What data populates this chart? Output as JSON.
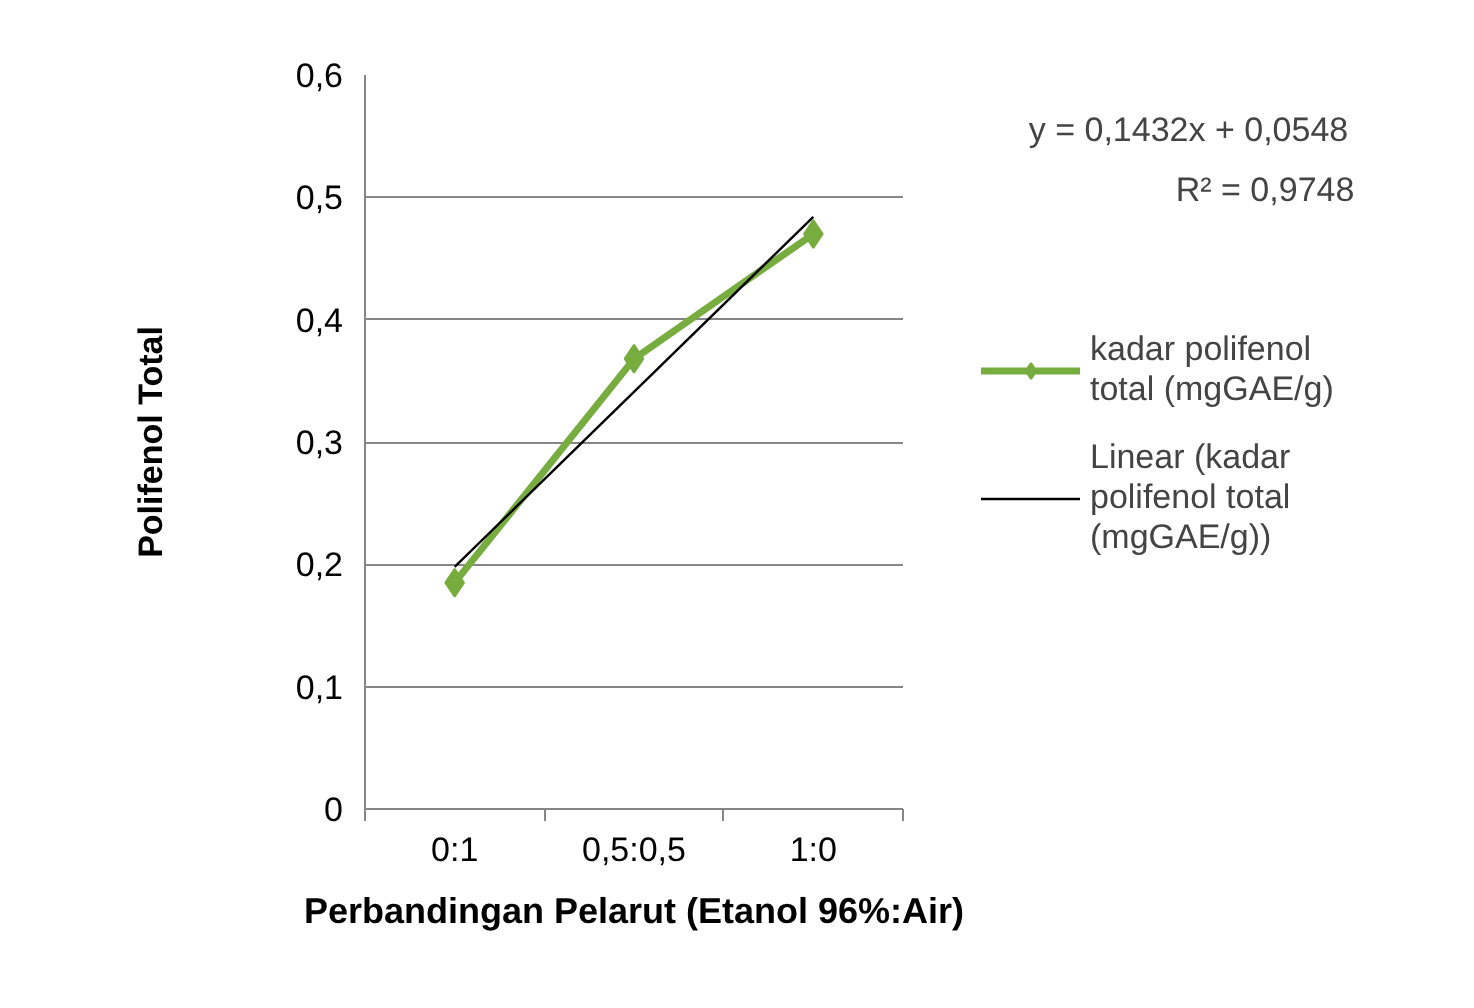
{
  "chart_data": {
    "type": "line",
    "categories": [
      "0:1",
      "0,5:0,5",
      "1:0"
    ],
    "xlabel": "Perbandingan Pelarut (Etanol 96%:Air)",
    "ylabel": "Polifenol Total",
    "ylim": [
      0,
      0.6
    ],
    "yticks": [
      0,
      {
        "value": 0.1,
        "label": "0,1"
      },
      {
        "value": 0.2,
        "label": "0,2"
      },
      {
        "value": 0.3,
        "label": "0,3"
      },
      {
        "value": 0.4,
        "label": "0,4"
      },
      {
        "value": 0.5,
        "label": "0,5"
      },
      {
        "value": 0.6,
        "label": "0,6"
      }
    ],
    "grid": "y",
    "legend": "right",
    "series": [
      {
        "name": "kadar polifenol total (mgGAE/g)",
        "color": "#77ac3f",
        "values": [
          0.185,
          0.368,
          0.47
        ],
        "marker": "diamond"
      },
      {
        "name": "Linear (kadar polifenol total (mgGAE/g))",
        "color": "#000000",
        "type": "line",
        "x": [
          "0:1",
          "0,5:0,5",
          "1:0"
        ],
        "values": [
          0.198,
          0.341,
          0.484
        ],
        "marker": "none"
      }
    ],
    "annotations": [
      "y = 0,1432x + 0,0548",
      "R² = 0,9748"
    ]
  }
}
